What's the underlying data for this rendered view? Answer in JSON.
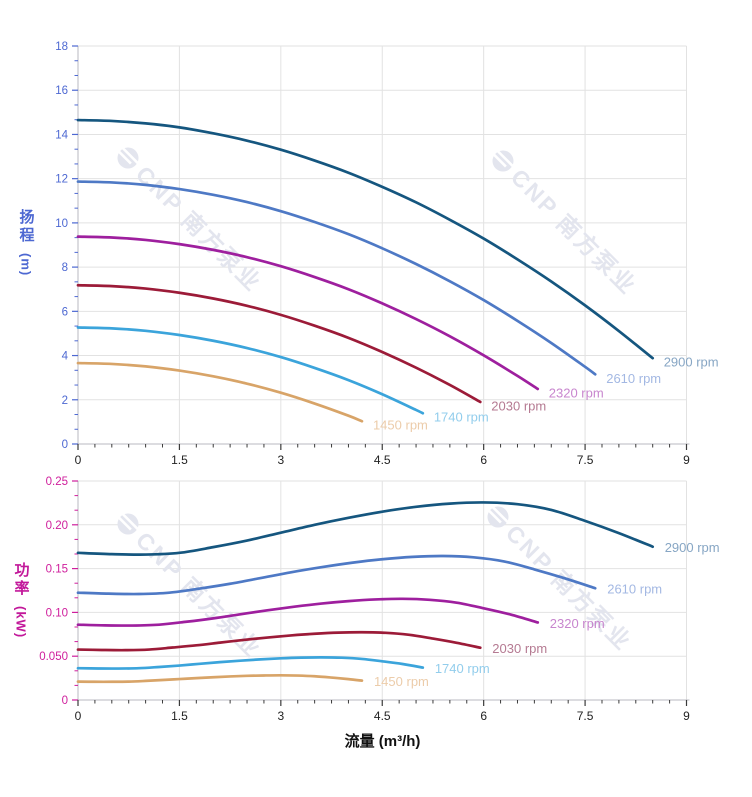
{
  "page": {
    "background": "#ffffff",
    "watermark": {
      "text": "CNP 南方泵业",
      "logo": "cnp-circle-logo",
      "color": "#e3e5ee"
    }
  },
  "chart_data": [
    {
      "type": "line",
      "id": "head-flow-curve",
      "title": "",
      "ylabel_cjk": "扬程",
      "ylabel_unit": "(m)",
      "xlabel": "",
      "xlim": [
        0,
        9
      ],
      "ylim": [
        0,
        18
      ],
      "grid": true,
      "legend_position": "labels-at-curve-ends",
      "x_tick_labels": [
        "0",
        "1.5",
        "3",
        "4.5",
        "6",
        "7.5",
        "9"
      ],
      "y_tick_labels": [
        "0",
        "2",
        "4",
        "6",
        "8",
        "10",
        "12",
        "14",
        "16",
        "18"
      ],
      "y_major_step": 2,
      "x_major_step": 1.5,
      "x_minor_step": 0.25,
      "y_minors_per_interval": 2,
      "axis_color": "#4d68d2",
      "series": [
        {
          "name": "2900 rpm",
          "color": "#15567f",
          "label_color": "#87a6c4",
          "points": [
            [
              0,
              14.65
            ],
            [
              0.5,
              14.61
            ],
            [
              1,
              14.5
            ],
            [
              1.5,
              14.32
            ],
            [
              2,
              14.05
            ],
            [
              2.5,
              13.72
            ],
            [
              3,
              13.31
            ],
            [
              3.5,
              12.82
            ],
            [
              4,
              12.27
            ],
            [
              4.5,
              11.63
            ],
            [
              5,
              10.93
            ],
            [
              5.5,
              10.14
            ],
            [
              6,
              9.29
            ],
            [
              6.5,
              8.35
            ],
            [
              7,
              7.35
            ],
            [
              7.5,
              6.27
            ],
            [
              8,
              5.11
            ],
            [
              8.5,
              3.88
            ]
          ]
        },
        {
          "name": "2610 rpm",
          "color": "#4e79c5",
          "label_color": "#a3b8e3",
          "points": [
            [
              0,
              11.87
            ],
            [
              0.5,
              11.83
            ],
            [
              1,
              11.72
            ],
            [
              1.5,
              11.53
            ],
            [
              2,
              11.27
            ],
            [
              2.5,
              10.94
            ],
            [
              3,
              10.53
            ],
            [
              3.5,
              10.04
            ],
            [
              4,
              9.49
            ],
            [
              4.5,
              8.85
            ],
            [
              5,
              8.14
            ],
            [
              5.5,
              7.36
            ],
            [
              6,
              6.51
            ],
            [
              6.5,
              5.57
            ],
            [
              7,
              4.57
            ],
            [
              7.5,
              3.49
            ],
            [
              7.65,
              3.15
            ]
          ]
        },
        {
          "name": "2320 rpm",
          "color": "#9e1f9e",
          "label_color": "#c886ce",
          "points": [
            [
              0,
              9.38
            ],
            [
              0.5,
              9.34
            ],
            [
              1,
              9.23
            ],
            [
              1.5,
              9.04
            ],
            [
              2,
              8.78
            ],
            [
              2.5,
              8.45
            ],
            [
              3,
              8.04
            ],
            [
              3.5,
              7.55
            ],
            [
              4,
              7.0
            ],
            [
              4.5,
              6.36
            ],
            [
              5,
              5.65
            ],
            [
              5.5,
              4.87
            ],
            [
              6,
              4.01
            ],
            [
              6.5,
              3.08
            ],
            [
              6.8,
              2.49
            ]
          ]
        },
        {
          "name": "2030 rpm",
          "color": "#9c1b38",
          "label_color": "#b57a92",
          "points": [
            [
              0,
              7.18
            ],
            [
              0.5,
              7.14
            ],
            [
              1,
              7.03
            ],
            [
              1.5,
              6.84
            ],
            [
              2,
              6.58
            ],
            [
              2.5,
              6.25
            ],
            [
              3,
              5.84
            ],
            [
              3.5,
              5.35
            ],
            [
              4,
              4.8
            ],
            [
              4.5,
              4.16
            ],
            [
              5,
              3.45
            ],
            [
              5.5,
              2.67
            ],
            [
              5.95,
              1.9
            ]
          ]
        },
        {
          "name": "1740 rpm",
          "color": "#3ba4db",
          "label_color": "#92cdec",
          "points": [
            [
              0,
              5.27
            ],
            [
              0.5,
              5.23
            ],
            [
              1,
              5.12
            ],
            [
              1.5,
              4.93
            ],
            [
              2,
              4.67
            ],
            [
              2.5,
              4.34
            ],
            [
              3,
              3.93
            ],
            [
              3.5,
              3.44
            ],
            [
              4,
              2.89
            ],
            [
              4.5,
              2.25
            ],
            [
              5,
              1.54
            ],
            [
              5.1,
              1.39
            ]
          ]
        },
        {
          "name": "1450 rpm",
          "color": "#d8a468",
          "label_color": "#ecccaa",
          "points": [
            [
              0,
              3.66
            ],
            [
              0.5,
              3.62
            ],
            [
              1,
              3.51
            ],
            [
              1.5,
              3.32
            ],
            [
              2,
              3.06
            ],
            [
              2.5,
              2.73
            ],
            [
              3,
              2.32
            ],
            [
              3.5,
              1.83
            ],
            [
              4,
              1.28
            ],
            [
              4.2,
              1.03
            ]
          ]
        }
      ]
    },
    {
      "type": "line",
      "id": "power-flow-curve",
      "title": "",
      "ylabel_cjk": "功率",
      "ylabel_unit": "(kW)",
      "xlabel": "流量 (m³/h)",
      "xlim": [
        0,
        9
      ],
      "ylim": [
        0,
        0.25
      ],
      "grid": true,
      "legend_position": "labels-at-curve-ends",
      "x_tick_labels": [
        "0",
        "1.5",
        "3",
        "4.5",
        "6",
        "7.5",
        "9"
      ],
      "y_tick_labels": [
        "0",
        "0.050",
        "0.10",
        "0.15",
        "0.20",
        "0.25"
      ],
      "y_major_step": 0.05,
      "x_major_step": 1.5,
      "x_minor_step": 0.25,
      "y_minors_per_interval": 2,
      "axis_color": "#cf1e9c",
      "series": [
        {
          "name": "2900 rpm",
          "color": "#15567f",
          "label_color": "#87a6c4",
          "points": [
            [
              0,
              0.168
            ],
            [
              0.5,
              0.1665
            ],
            [
              1,
              0.166
            ],
            [
              1.5,
              0.168
            ],
            [
              2,
              0.1745
            ],
            [
              2.5,
              0.182
            ],
            [
              3,
              0.191
            ],
            [
              3.5,
              0.2
            ],
            [
              4,
              0.208
            ],
            [
              4.5,
              0.215
            ],
            [
              5,
              0.2205
            ],
            [
              5.5,
              0.2242
            ],
            [
              6,
              0.2255
            ],
            [
              6.5,
              0.2235
            ],
            [
              7,
              0.217
            ],
            [
              7.5,
              0.2045
            ],
            [
              8,
              0.1905
            ],
            [
              8.5,
              0.175
            ]
          ]
        },
        {
          "name": "2610 rpm",
          "color": "#4e79c5",
          "label_color": "#a3b8e3",
          "points": [
            [
              0,
              0.1225
            ],
            [
              0.45,
              0.1214
            ],
            [
              0.9,
              0.121
            ],
            [
              1.35,
              0.1225
            ],
            [
              1.8,
              0.1272
            ],
            [
              2.25,
              0.1327
            ],
            [
              2.7,
              0.1392
            ],
            [
              3.15,
              0.1458
            ],
            [
              3.6,
              0.1516
            ],
            [
              4.05,
              0.1567
            ],
            [
              4.5,
              0.1607
            ],
            [
              4.95,
              0.1634
            ],
            [
              5.4,
              0.1644
            ],
            [
              5.85,
              0.1629
            ],
            [
              6.3,
              0.1582
            ],
            [
              6.75,
              0.1491
            ],
            [
              7.2,
              0.1389
            ],
            [
              7.65,
              0.1276
            ]
          ]
        },
        {
          "name": "2320 rpm",
          "color": "#9e1f9e",
          "label_color": "#c886ce",
          "points": [
            [
              0,
              0.086
            ],
            [
              0.4,
              0.0852
            ],
            [
              0.8,
              0.085
            ],
            [
              1.2,
              0.086
            ],
            [
              1.6,
              0.0893
            ],
            [
              2,
              0.0932
            ],
            [
              2.4,
              0.0978
            ],
            [
              2.8,
              0.1024
            ],
            [
              3.2,
              0.1065
            ],
            [
              3.6,
              0.1101
            ],
            [
              4,
              0.1129
            ],
            [
              4.4,
              0.1148
            ],
            [
              4.8,
              0.1155
            ],
            [
              5.2,
              0.1144
            ],
            [
              5.6,
              0.1111
            ],
            [
              6,
              0.1047
            ],
            [
              6.4,
              0.0975
            ],
            [
              6.8,
              0.0885
            ]
          ]
        },
        {
          "name": "2030 rpm",
          "color": "#9c1b38",
          "label_color": "#b57a92",
          "points": [
            [
              0,
              0.0576
            ],
            [
              0.35,
              0.0571
            ],
            [
              0.7,
              0.0569
            ],
            [
              1.05,
              0.0576
            ],
            [
              1.4,
              0.0599
            ],
            [
              1.75,
              0.0624
            ],
            [
              2.1,
              0.0655
            ],
            [
              2.45,
              0.0686
            ],
            [
              2.8,
              0.0713
            ],
            [
              3.15,
              0.0737
            ],
            [
              3.5,
              0.0756
            ],
            [
              3.85,
              0.0769
            ],
            [
              4.2,
              0.0773
            ],
            [
              4.55,
              0.0767
            ],
            [
              4.9,
              0.0744
            ],
            [
              5.25,
              0.0701
            ],
            [
              5.6,
              0.0653
            ],
            [
              5.95,
              0.0597
            ]
          ]
        },
        {
          "name": "1740 rpm",
          "color": "#3ba4db",
          "label_color": "#92cdec",
          "points": [
            [
              0,
              0.0363
            ],
            [
              0.3,
              0.036
            ],
            [
              0.6,
              0.0359
            ],
            [
              0.9,
              0.0363
            ],
            [
              1.2,
              0.0377
            ],
            [
              1.5,
              0.0393
            ],
            [
              1.8,
              0.0413
            ],
            [
              2.1,
              0.0432
            ],
            [
              2.4,
              0.0449
            ],
            [
              2.7,
              0.0464
            ],
            [
              3,
              0.0476
            ],
            [
              3.3,
              0.0484
            ],
            [
              3.6,
              0.0487
            ],
            [
              3.9,
              0.0483
            ],
            [
              4.2,
              0.0469
            ],
            [
              4.5,
              0.0442
            ],
            [
              4.8,
              0.0411
            ],
            [
              5.1,
              0.037
            ]
          ]
        },
        {
          "name": "1450 rpm",
          "color": "#d8a468",
          "label_color": "#ecccaa",
          "points": [
            [
              0,
              0.021
            ],
            [
              0.25,
              0.0208
            ],
            [
              0.5,
              0.0208
            ],
            [
              0.75,
              0.021
            ],
            [
              1,
              0.0218
            ],
            [
              1.25,
              0.0228
            ],
            [
              1.5,
              0.0239
            ],
            [
              1.75,
              0.025
            ],
            [
              2,
              0.026
            ],
            [
              2.25,
              0.0269
            ],
            [
              2.5,
              0.0276
            ],
            [
              2.75,
              0.028
            ],
            [
              3,
              0.0282
            ],
            [
              3.25,
              0.0279
            ],
            [
              3.5,
              0.0271
            ],
            [
              3.75,
              0.0256
            ],
            [
              4,
              0.0238
            ],
            [
              4.2,
              0.0221
            ]
          ]
        }
      ]
    }
  ]
}
